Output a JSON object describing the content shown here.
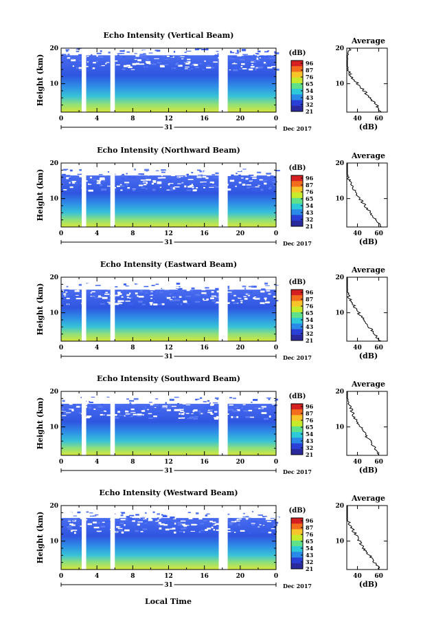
{
  "figure": {
    "xlabel": "Local Time",
    "colorbar_label": "(dB)",
    "colorbar_ticks": [
      "96",
      "87",
      "76",
      "65",
      "54",
      "43",
      "32",
      "21"
    ],
    "colorbar_colors": [
      "#d42020",
      "#f26d1d",
      "#f7c52b",
      "#c8ea2c",
      "#5fe08a",
      "#2ec9d8",
      "#2a8ae8",
      "#2a3fd6",
      "#2b2a9c"
    ],
    "xticks": [
      "0",
      "4",
      "8",
      "12",
      "16",
      "20",
      "0"
    ],
    "yticks_main": [
      "20",
      "10"
    ],
    "date_day": "31",
    "date_label": "Dec 2017",
    "ylabel": "Height (km)",
    "avg_title": "Average",
    "avg_xlabel": "(dB)",
    "avg_xticks": [
      "40",
      "60"
    ],
    "avg_yticks": [
      "20",
      "10"
    ]
  },
  "chart_data": [
    {
      "type": "heatmap",
      "title": "Echo Intensity (Vertical Beam)",
      "xlim": [
        0,
        24
      ],
      "ylim": [
        2,
        20
      ],
      "gaps": [
        [
          2.3,
          2.8
        ],
        [
          5.5,
          6.0
        ],
        [
          17.6,
          18.6
        ]
      ],
      "profile": {
        "height": [
          2,
          4,
          6,
          8,
          10,
          12,
          14,
          16,
          18,
          20
        ],
        "db": [
          62,
          58,
          52,
          46,
          40,
          34,
          31,
          29,
          30,
          34
        ]
      }
    },
    {
      "type": "heatmap",
      "title": "Echo Intensity (Northward Beam)",
      "xlim": [
        0,
        24
      ],
      "ylim": [
        2,
        20
      ],
      "gaps": [
        [
          2.3,
          2.8
        ],
        [
          5.5,
          6.0
        ],
        [
          17.6,
          18.6
        ]
      ],
      "profile": {
        "height": [
          2,
          4,
          6,
          8,
          10,
          12,
          14,
          16,
          18,
          20
        ],
        "db": [
          62,
          57,
          52,
          47,
          42,
          38,
          34,
          31,
          28,
          26
        ]
      }
    },
    {
      "type": "heatmap",
      "title": "Echo Intensity (Eastward Beam)",
      "xlim": [
        0,
        24
      ],
      "ylim": [
        2,
        20
      ],
      "gaps": [
        [
          2.3,
          2.8
        ],
        [
          5.5,
          6.0
        ],
        [
          17.6,
          18.6
        ]
      ],
      "profile": {
        "height": [
          2,
          4,
          6,
          8,
          10,
          12,
          14,
          16,
          18,
          20
        ],
        "db": [
          61,
          56,
          51,
          46,
          41,
          37,
          33,
          30,
          27,
          26
        ]
      }
    },
    {
      "type": "heatmap",
      "title": "Echo Intensity (Southward Beam)",
      "xlim": [
        0,
        24
      ],
      "ylim": [
        2,
        20
      ],
      "gaps": [
        [
          2.3,
          2.8
        ],
        [
          5.5,
          6.0
        ],
        [
          17.6,
          18.6
        ]
      ],
      "profile": {
        "height": [
          2,
          4,
          6,
          8,
          10,
          12,
          14,
          16,
          18,
          20
        ],
        "db": [
          61,
          57,
          52,
          47,
          43,
          38,
          35,
          33,
          30,
          26
        ]
      }
    },
    {
      "type": "heatmap",
      "title": "Echo Intensity (Westward Beam)",
      "xlim": [
        0,
        24
      ],
      "ylim": [
        2,
        20
      ],
      "gaps": [
        [
          2.3,
          2.8
        ],
        [
          5.5,
          6.0
        ],
        [
          17.6,
          18.6
        ]
      ],
      "profile": {
        "height": [
          2,
          4,
          6,
          8,
          10,
          12,
          14,
          16,
          18,
          20
        ],
        "db": [
          61,
          56,
          51,
          46,
          42,
          38,
          34,
          31,
          28,
          26
        ]
      }
    }
  ]
}
